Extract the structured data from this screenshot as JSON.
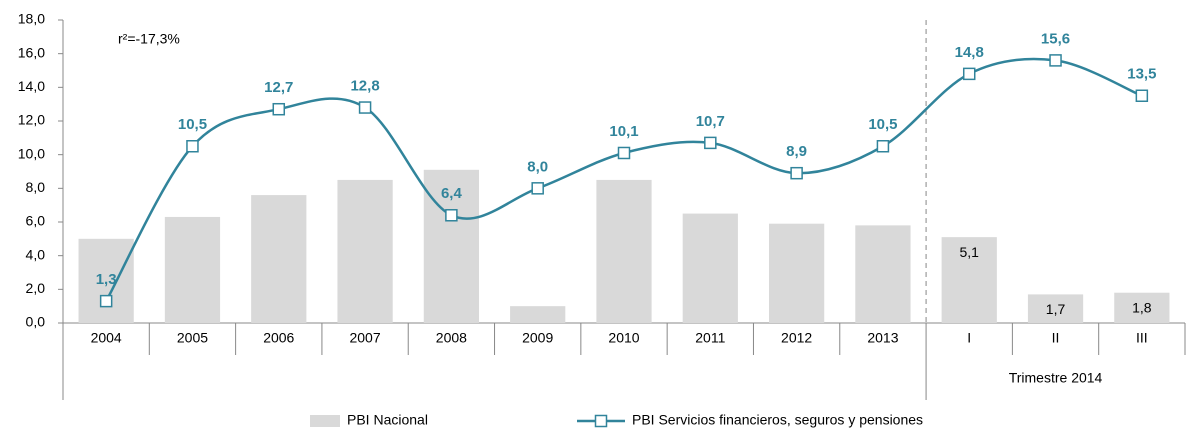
{
  "chart_data": {
    "type": "bar_line",
    "categories": [
      "2004",
      "2005",
      "2006",
      "2007",
      "2008",
      "2009",
      "2010",
      "2011",
      "2012",
      "2013",
      "I",
      "II",
      "III"
    ],
    "group_label": "Trimestre 2014",
    "annotation": "r²=-17,3%",
    "series": [
      {
        "name": "PBI Nacional",
        "type": "bar",
        "color": "#d9d9d9",
        "values": [
          5.0,
          6.3,
          7.6,
          8.5,
          9.1,
          1.0,
          8.5,
          6.5,
          5.9,
          5.8,
          5.1,
          1.7,
          1.8
        ],
        "value_labels": [
          null,
          null,
          null,
          null,
          null,
          null,
          null,
          null,
          null,
          null,
          "5,1",
          "1,7",
          "1,8"
        ]
      },
      {
        "name": "PBI Servicios financieros, seguros y pensiones",
        "type": "line",
        "color": "#31849b",
        "values": [
          1.3,
          10.5,
          12.7,
          12.8,
          6.4,
          8.0,
          10.1,
          10.7,
          8.9,
          10.5,
          14.8,
          15.6,
          13.5
        ],
        "value_labels": [
          "1,3",
          "10,5",
          "12,7",
          "12,8",
          "6,4",
          "8,0",
          "10,1",
          "10,7",
          "8,9",
          "10,5",
          "14,8",
          "15,6",
          "13,5"
        ]
      }
    ],
    "ylim": [
      0,
      18
    ],
    "yticks": [
      {
        "value": 0,
        "label": "0,0"
      },
      {
        "value": 2,
        "label": "2,0"
      },
      {
        "value": 4,
        "label": "4,0"
      },
      {
        "value": 6,
        "label": "6,0"
      },
      {
        "value": 8,
        "label": "8,0"
      },
      {
        "value": 10,
        "label": "10,0"
      },
      {
        "value": 12,
        "label": "12,0"
      },
      {
        "value": 14,
        "label": "14,0"
      },
      {
        "value": 16,
        "label": "16,0"
      },
      {
        "value": 18,
        "label": "18,0"
      }
    ],
    "legend": "bottom"
  }
}
